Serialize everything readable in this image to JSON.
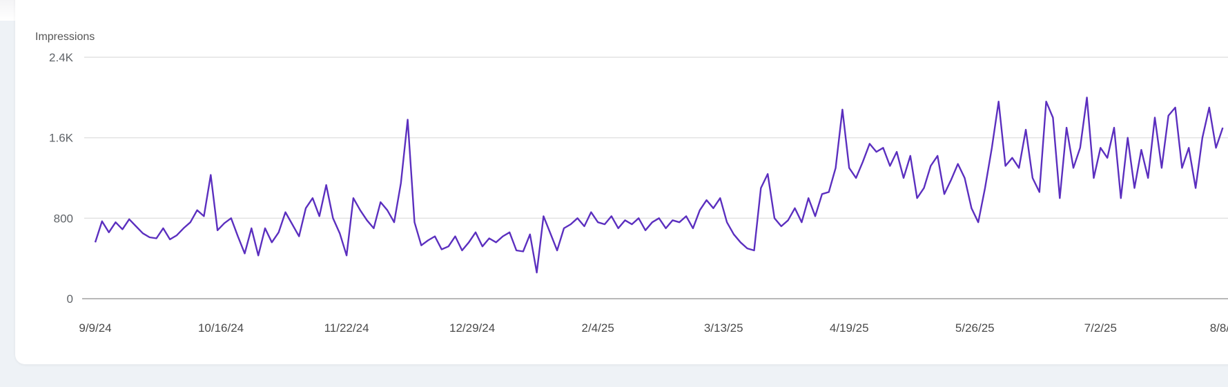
{
  "chart_data": {
    "type": "line",
    "title": "",
    "ylabel": "Impressions",
    "xlabel": "",
    "ylim": [
      0,
      2400
    ],
    "y_ticks": [
      0,
      800,
      1600,
      2400
    ],
    "y_tick_labels": [
      "0",
      "800",
      "1.6K",
      "2.4K"
    ],
    "x_start_date": "9/9/24",
    "x_step_days": 2,
    "x_tick_days": [
      0,
      37,
      74,
      111,
      148,
      185,
      222,
      259,
      296,
      333
    ],
    "x_tick_labels": [
      "9/9/24",
      "10/16/24",
      "11/22/24",
      "12/29/24",
      "2/4/25",
      "3/13/25",
      "4/19/25",
      "5/26/25",
      "7/2/25",
      "8/8/25"
    ],
    "grid": true,
    "legend": "none",
    "series": [
      {
        "name": "Impressions",
        "color": "#5b2fbf",
        "values": [
          560,
          770,
          660,
          760,
          690,
          790,
          720,
          650,
          610,
          600,
          700,
          590,
          630,
          700,
          760,
          880,
          820,
          1230,
          680,
          750,
          800,
          620,
          450,
          700,
          430,
          700,
          560,
          660,
          860,
          740,
          620,
          900,
          1000,
          820,
          1130,
          800,
          650,
          430,
          1000,
          880,
          780,
          700,
          960,
          880,
          760,
          1150,
          1780,
          760,
          530,
          580,
          620,
          490,
          520,
          620,
          480,
          560,
          660,
          520,
          600,
          560,
          620,
          660,
          480,
          470,
          640,
          260,
          820,
          650,
          480,
          700,
          740,
          800,
          720,
          860,
          760,
          740,
          820,
          700,
          780,
          740,
          800,
          680,
          760,
          800,
          700,
          780,
          760,
          820,
          700,
          880,
          980,
          900,
          1000,
          760,
          640,
          560,
          500,
          480,
          1100,
          1240,
          800,
          720,
          780,
          900,
          760,
          1000,
          820,
          1040,
          1060,
          1300,
          1880,
          1300,
          1200,
          1360,
          1540,
          1460,
          1500,
          1320,
          1460,
          1200,
          1420,
          1000,
          1100,
          1320,
          1420,
          1040,
          1180,
          1340,
          1200,
          900,
          760,
          1100,
          1500,
          1960,
          1320,
          1400,
          1300,
          1680,
          1200,
          1060,
          1960,
          1800,
          1000,
          1700,
          1300,
          1500,
          2000,
          1200,
          1500,
          1400,
          1700,
          1000,
          1600,
          1100,
          1480,
          1200,
          1800,
          1300,
          1820,
          1900,
          1300,
          1500,
          1100,
          1600,
          1900,
          1500,
          1700
        ]
      }
    ]
  }
}
